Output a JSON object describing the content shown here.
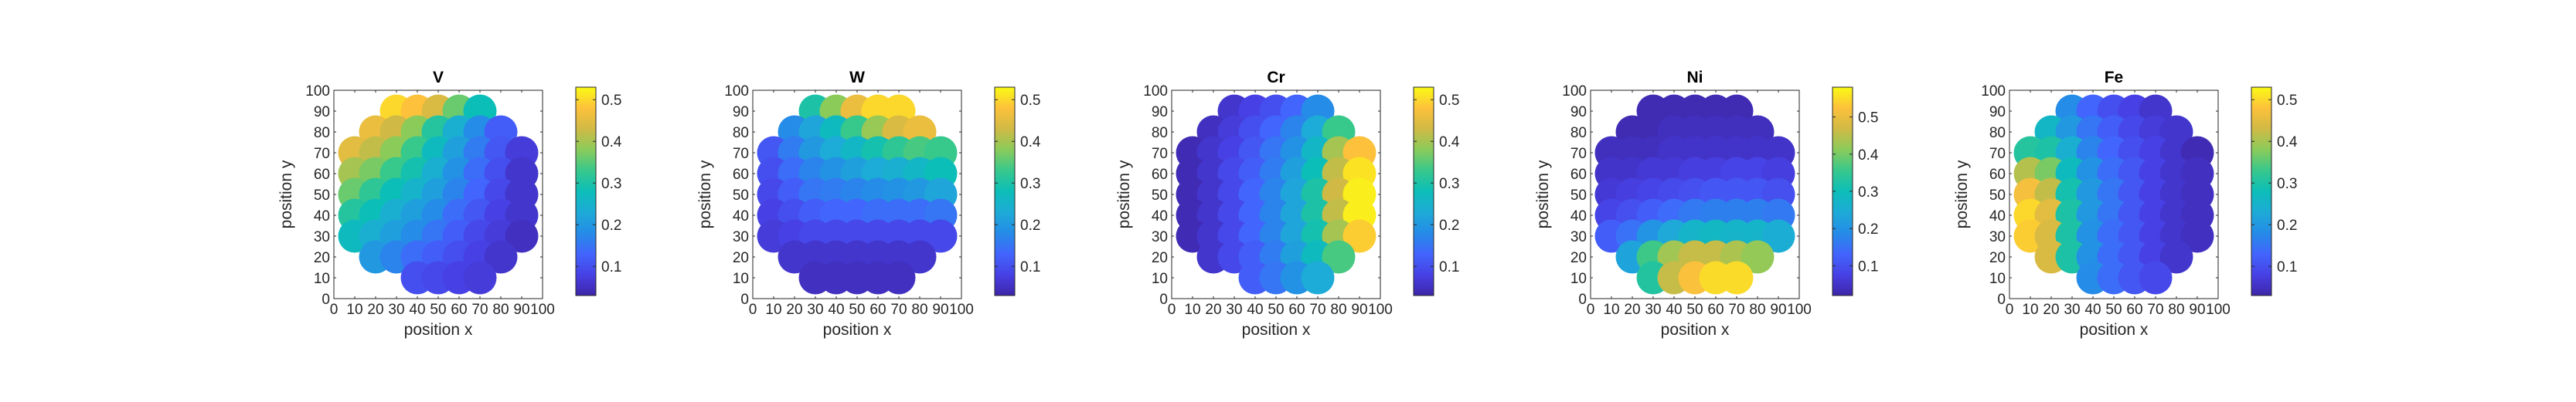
{
  "figure": {
    "background": "#ffffff",
    "colormap": "parula"
  },
  "chart_data": [
    {
      "type": "heatmap",
      "title": "V",
      "xlabel": "position x",
      "ylabel": "position y",
      "xlim": [
        0,
        100
      ],
      "ylim": [
        0,
        100
      ],
      "xticks": [
        "0",
        "10",
        "20",
        "30",
        "40",
        "50",
        "60",
        "70",
        "80",
        "90",
        "100"
      ],
      "yticks": [
        "0",
        "10",
        "20",
        "30",
        "40",
        "50",
        "60",
        "70",
        "80",
        "90",
        "100"
      ],
      "colorbar": {
        "min": 0.03,
        "max": 0.53,
        "ticks": [
          "0.1",
          "0.2",
          "0.3",
          "0.4",
          "0.5"
        ],
        "tick_values": [
          0.1,
          0.2,
          0.3,
          0.4,
          0.5
        ]
      },
      "grid": {
        "x": [
          10,
          20,
          30,
          40,
          50,
          60,
          70,
          80,
          90
        ],
        "y": [
          10,
          20,
          30,
          40,
          50,
          60,
          70,
          80,
          90
        ],
        "values": [
          [
            null,
            null,
            null,
            0.1,
            0.09,
            0.08,
            0.07,
            null,
            null
          ],
          [
            null,
            0.2,
            0.17,
            0.14,
            0.12,
            0.1,
            0.08,
            0.06,
            null
          ],
          [
            0.27,
            0.24,
            0.21,
            0.18,
            0.15,
            0.12,
            0.09,
            0.07,
            0.05
          ],
          [
            0.31,
            0.28,
            0.24,
            0.21,
            0.18,
            0.14,
            0.11,
            0.08,
            0.06
          ],
          [
            0.36,
            0.32,
            0.28,
            0.25,
            0.21,
            0.17,
            0.13,
            0.09,
            0.06
          ],
          [
            0.4,
            0.37,
            0.33,
            0.29,
            0.24,
            0.19,
            0.14,
            0.1,
            0.06
          ],
          [
            0.45,
            0.42,
            0.38,
            0.33,
            0.27,
            0.21,
            0.16,
            0.11,
            0.07
          ],
          [
            null,
            0.46,
            0.43,
            0.38,
            0.31,
            0.24,
            0.18,
            0.12,
            null
          ],
          [
            null,
            null,
            0.5,
            0.48,
            0.44,
            0.36,
            0.28,
            null,
            null
          ]
        ]
      }
    },
    {
      "type": "heatmap",
      "title": "W",
      "xlabel": "position x",
      "ylabel": "position y",
      "xlim": [
        0,
        100
      ],
      "ylim": [
        0,
        100
      ],
      "xticks": [
        "0",
        "10",
        "20",
        "30",
        "40",
        "50",
        "60",
        "70",
        "80",
        "90",
        "100"
      ],
      "yticks": [
        "0",
        "10",
        "20",
        "30",
        "40",
        "50",
        "60",
        "70",
        "80",
        "90",
        "100"
      ],
      "colorbar": {
        "min": 0.03,
        "max": 0.53,
        "ticks": [
          "0.1",
          "0.2",
          "0.3",
          "0.4",
          "0.5"
        ],
        "tick_values": [
          0.1,
          0.2,
          0.3,
          0.4,
          0.5
        ]
      },
      "grid": {
        "x": [
          10,
          20,
          30,
          40,
          50,
          60,
          70,
          80,
          90
        ],
        "y": [
          10,
          20,
          30,
          40,
          50,
          60,
          70,
          80,
          90
        ],
        "values": [
          [
            null,
            null,
            0.05,
            0.05,
            0.05,
            0.05,
            0.05,
            null,
            null
          ],
          [
            null,
            0.06,
            0.06,
            0.06,
            0.06,
            0.06,
            0.06,
            0.06,
            null
          ],
          [
            0.07,
            0.08,
            0.09,
            0.09,
            0.09,
            0.09,
            0.09,
            0.09,
            0.09
          ],
          [
            0.08,
            0.1,
            0.12,
            0.13,
            0.13,
            0.14,
            0.14,
            0.14,
            0.15
          ],
          [
            0.09,
            0.12,
            0.15,
            0.16,
            0.17,
            0.18,
            0.19,
            0.2,
            0.22
          ],
          [
            0.1,
            0.14,
            0.17,
            0.19,
            0.21,
            0.23,
            0.24,
            0.26,
            0.28
          ],
          [
            0.11,
            0.16,
            0.2,
            0.23,
            0.26,
            0.29,
            0.32,
            0.34,
            0.33
          ],
          [
            null,
            0.18,
            0.22,
            0.27,
            0.33,
            0.39,
            0.44,
            0.46,
            null
          ],
          [
            null,
            null,
            0.3,
            0.38,
            0.46,
            0.5,
            0.5,
            null,
            null
          ]
        ]
      }
    },
    {
      "type": "heatmap",
      "title": "Cr",
      "xlabel": "position x",
      "ylabel": "position y",
      "xlim": [
        0,
        100
      ],
      "ylim": [
        0,
        100
      ],
      "xticks": [
        "0",
        "10",
        "20",
        "30",
        "40",
        "50",
        "60",
        "70",
        "80",
        "90",
        "100"
      ],
      "yticks": [
        "0",
        "10",
        "20",
        "30",
        "40",
        "50",
        "60",
        "70",
        "80",
        "90",
        "100"
      ],
      "colorbar": {
        "min": 0.03,
        "max": 0.53,
        "ticks": [
          "0.1",
          "0.2",
          "0.3",
          "0.4",
          "0.5"
        ],
        "tick_values": [
          0.1,
          0.2,
          0.3,
          0.4,
          0.5
        ]
      },
      "grid": {
        "x": [
          10,
          20,
          30,
          40,
          50,
          60,
          70,
          80,
          90
        ],
        "y": [
          10,
          20,
          30,
          40,
          50,
          60,
          70,
          80,
          90
        ],
        "values": [
          [
            null,
            null,
            null,
            0.12,
            0.15,
            0.19,
            0.23,
            null,
            null
          ],
          [
            null,
            0.06,
            0.09,
            0.12,
            0.16,
            0.21,
            0.27,
            0.34,
            null
          ],
          [
            0.04,
            0.06,
            0.09,
            0.13,
            0.17,
            0.22,
            0.29,
            0.4,
            0.49
          ],
          [
            0.04,
            0.06,
            0.09,
            0.13,
            0.17,
            0.22,
            0.3,
            0.42,
            0.52
          ],
          [
            0.04,
            0.06,
            0.09,
            0.13,
            0.17,
            0.22,
            0.3,
            0.43,
            0.52
          ],
          [
            0.04,
            0.06,
            0.09,
            0.12,
            0.16,
            0.21,
            0.28,
            0.42,
            0.51
          ],
          [
            0.04,
            0.06,
            0.08,
            0.11,
            0.15,
            0.19,
            0.26,
            0.4,
            0.48
          ],
          [
            null,
            0.05,
            0.07,
            0.1,
            0.13,
            0.17,
            0.23,
            0.33,
            null
          ],
          [
            null,
            null,
            0.06,
            0.08,
            0.1,
            0.13,
            0.18,
            null,
            null
          ]
        ]
      }
    },
    {
      "type": "heatmap",
      "title": "Ni",
      "xlabel": "position x",
      "ylabel": "position y",
      "xlim": [
        0,
        100
      ],
      "ylim": [
        0,
        100
      ],
      "xticks": [
        "0",
        "10",
        "20",
        "30",
        "40",
        "50",
        "60",
        "70",
        "80",
        "90",
        "100"
      ],
      "yticks": [
        "0",
        "10",
        "20",
        "30",
        "40",
        "50",
        "60",
        "70",
        "80",
        "90",
        "100"
      ],
      "colorbar": {
        "min": 0.02,
        "max": 0.58,
        "ticks": [
          "0.1",
          "0.2",
          "0.3",
          "0.4",
          "0.5"
        ],
        "tick_values": [
          0.1,
          0.2,
          0.3,
          0.4,
          0.5
        ]
      },
      "grid": {
        "x": [
          10,
          20,
          30,
          40,
          50,
          60,
          70,
          80,
          90
        ],
        "y": [
          10,
          20,
          30,
          40,
          50,
          60,
          70,
          80,
          90
        ],
        "values": [
          [
            null,
            null,
            0.33,
            0.46,
            0.52,
            0.55,
            0.55,
            null,
            null
          ],
          [
            null,
            0.23,
            0.36,
            0.43,
            0.46,
            0.46,
            0.44,
            0.42,
            null
          ],
          [
            0.12,
            0.15,
            0.2,
            0.24,
            0.27,
            0.28,
            0.27,
            0.27,
            0.25
          ],
          [
            0.08,
            0.1,
            0.12,
            0.14,
            0.16,
            0.17,
            0.17,
            0.17,
            0.16
          ],
          [
            0.06,
            0.07,
            0.08,
            0.09,
            0.1,
            0.11,
            0.11,
            0.11,
            0.1
          ],
          [
            0.05,
            0.05,
            0.06,
            0.06,
            0.07,
            0.07,
            0.08,
            0.08,
            0.07
          ],
          [
            0.04,
            0.04,
            0.04,
            0.05,
            0.05,
            0.05,
            0.05,
            0.05,
            0.05
          ],
          [
            null,
            0.03,
            0.03,
            0.04,
            0.04,
            0.04,
            0.04,
            0.04,
            null
          ],
          [
            null,
            null,
            0.03,
            0.03,
            0.03,
            0.03,
            0.03,
            null,
            null
          ]
        ]
      }
    },
    {
      "type": "heatmap",
      "title": "Fe",
      "xlabel": "position x",
      "ylabel": "position y",
      "xlim": [
        0,
        100
      ],
      "ylim": [
        0,
        100
      ],
      "xticks": [
        "0",
        "10",
        "20",
        "30",
        "40",
        "50",
        "60",
        "70",
        "80",
        "90",
        "100"
      ],
      "yticks": [
        "0",
        "10",
        "20",
        "30",
        "40",
        "50",
        "60",
        "70",
        "80",
        "90",
        "100"
      ],
      "colorbar": {
        "min": 0.03,
        "max": 0.53,
        "ticks": [
          "0.1",
          "0.2",
          "0.3",
          "0.4",
          "0.5"
        ],
        "tick_values": [
          0.1,
          0.2,
          0.3,
          0.4,
          0.5
        ]
      },
      "grid": {
        "x": [
          10,
          20,
          30,
          40,
          50,
          60,
          70,
          80,
          90
        ],
        "y": [
          10,
          20,
          30,
          40,
          50,
          60,
          70,
          80,
          90
        ],
        "values": [
          [
            null,
            null,
            null,
            0.18,
            0.14,
            0.11,
            0.09,
            null,
            null
          ],
          [
            null,
            0.44,
            0.3,
            0.19,
            0.14,
            0.11,
            0.08,
            0.06,
            null
          ],
          [
            0.49,
            0.44,
            0.3,
            0.19,
            0.14,
            0.11,
            0.08,
            0.06,
            0.05
          ],
          [
            0.5,
            0.45,
            0.3,
            0.2,
            0.15,
            0.11,
            0.08,
            0.06,
            0.05
          ],
          [
            0.47,
            0.42,
            0.29,
            0.2,
            0.15,
            0.11,
            0.08,
            0.06,
            0.05
          ],
          [
            0.41,
            0.37,
            0.27,
            0.19,
            0.14,
            0.11,
            0.08,
            0.06,
            0.05
          ],
          [
            0.31,
            0.3,
            0.24,
            0.17,
            0.13,
            0.1,
            0.08,
            0.06,
            0.04
          ],
          [
            null,
            0.26,
            0.2,
            0.15,
            0.12,
            0.09,
            0.07,
            0.06,
            null
          ],
          [
            null,
            null,
            0.18,
            0.13,
            0.1,
            0.08,
            0.06,
            null,
            null
          ]
        ]
      }
    }
  ]
}
